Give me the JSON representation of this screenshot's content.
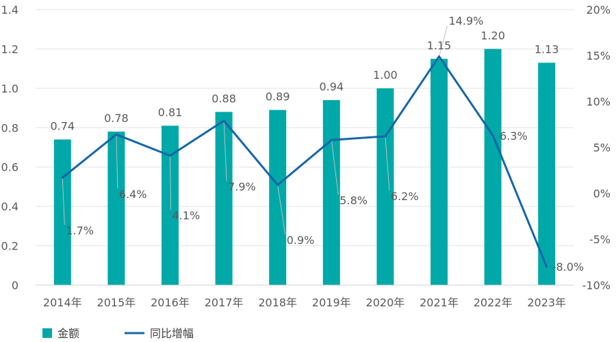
{
  "chart_data": {
    "type": "bar+line",
    "title": "",
    "categories": [
      "2014年",
      "2015年",
      "2016年",
      "2017年",
      "2018年",
      "2019年",
      "2020年",
      "2021年",
      "2022年",
      "2023年"
    ],
    "series": [
      {
        "name": "金额",
        "type": "bar",
        "axis": "left",
        "color": "#00A8A8",
        "values": [
          0.74,
          0.78,
          0.81,
          0.88,
          0.89,
          0.94,
          1.0,
          1.15,
          1.2,
          1.13
        ],
        "labels": [
          "0.74",
          "0.78",
          "0.81",
          "0.88",
          "0.89",
          "0.94",
          "1.00",
          "1.15",
          "1.20",
          "1.13"
        ]
      },
      {
        "name": "同比增幅",
        "type": "line",
        "axis": "right",
        "color": "#1666A8",
        "values": [
          1.7,
          6.4,
          4.1,
          7.9,
          0.9,
          5.8,
          6.2,
          14.9,
          6.3,
          -8.0
        ],
        "labels": [
          "1.7%",
          "6.4%",
          "4.1%",
          "7.9%",
          "0.9%",
          "5.8%",
          "6.2%",
          "14.9%",
          "6.3%",
          "-8.0%"
        ]
      }
    ],
    "y_left": {
      "min": 0,
      "max": 1.4,
      "ticks": [
        "0",
        "0.2",
        "0.4",
        "0.6",
        "0.8",
        "1.0",
        "1.2",
        "1.4"
      ]
    },
    "y_right": {
      "min": -10,
      "max": 20,
      "ticks": [
        "-10%",
        "-5%",
        "0%",
        "5%",
        "10%",
        "15%",
        "20%"
      ]
    },
    "grid": true,
    "legend_position": "bottom-left"
  }
}
